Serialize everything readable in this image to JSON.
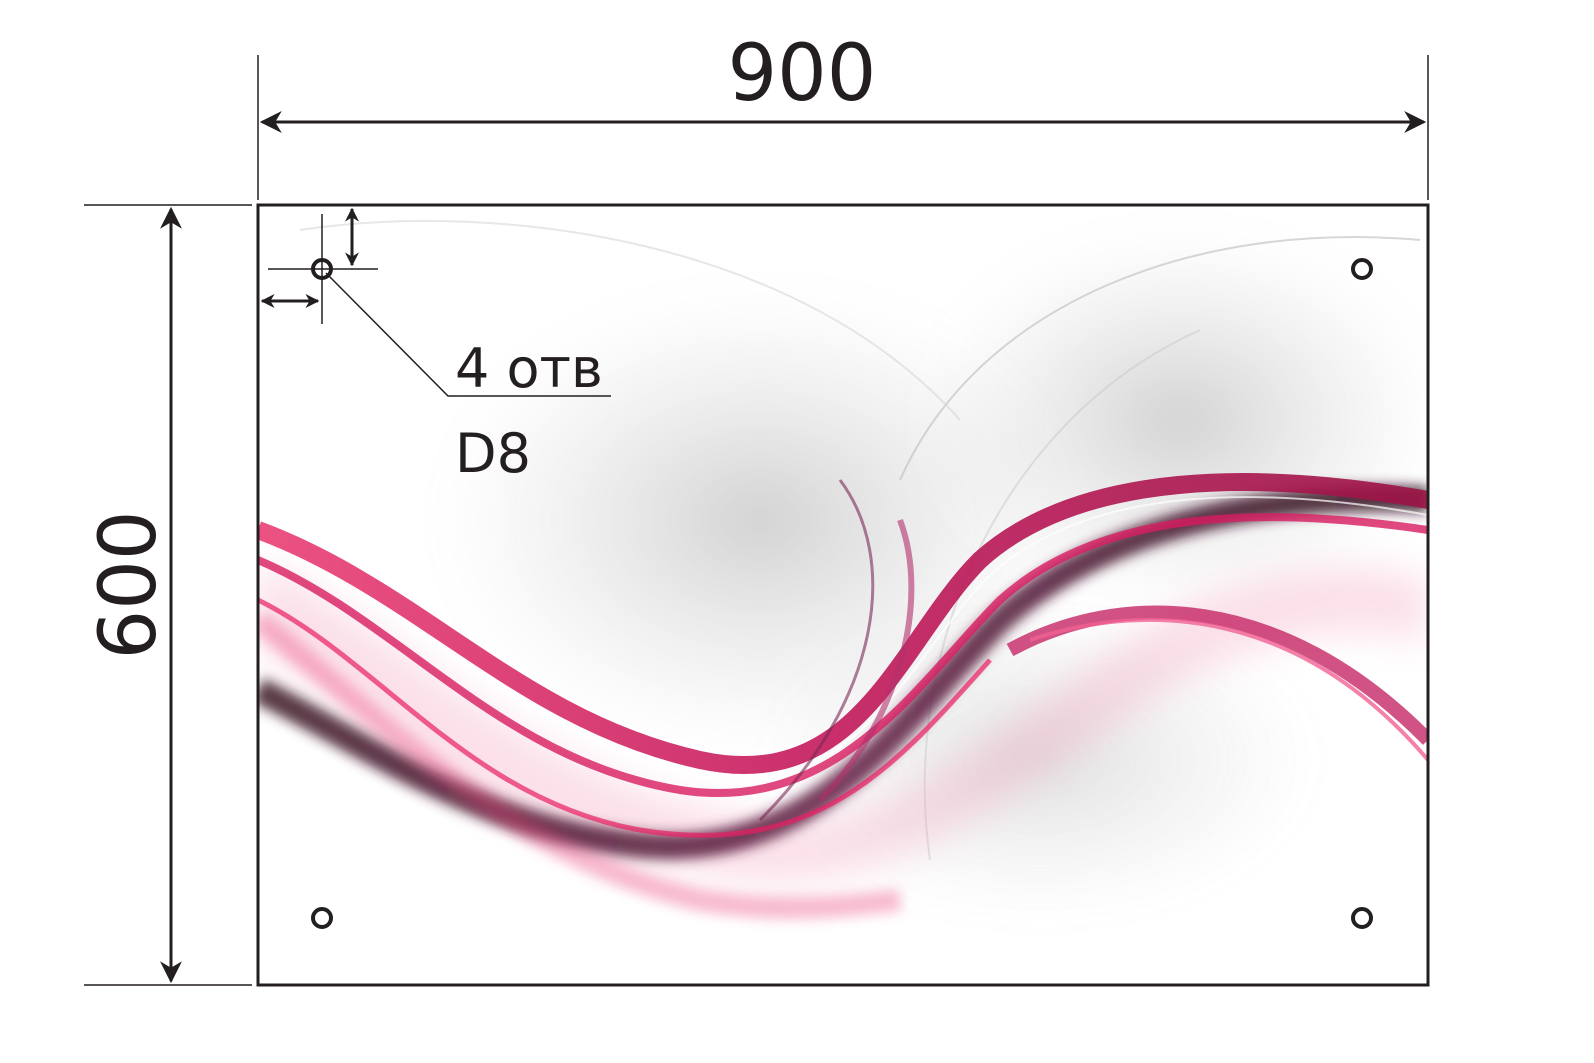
{
  "dimensions": {
    "width_label": "900",
    "height_label": "600"
  },
  "callout": {
    "holes_label": "4 отв",
    "diameter_label": "D8"
  },
  "colors": {
    "ink": "#231f20",
    "accent_pink": "#d4145a",
    "accent_plum": "#5a1f3c",
    "smoke_gray": "#8c8c8c"
  }
}
